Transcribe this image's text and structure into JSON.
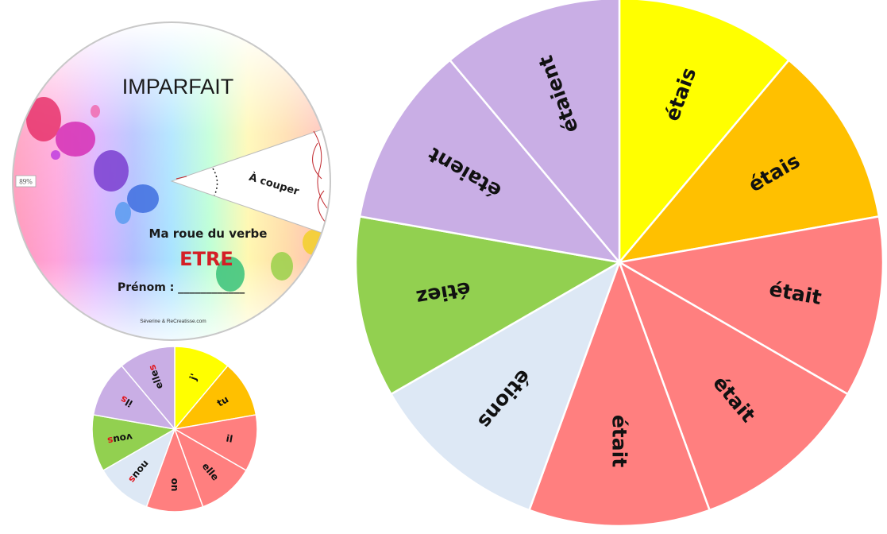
{
  "cover": {
    "title": "IMPARFAIT",
    "subtitle": "Ma roue du verbe",
    "verb": "ETRE",
    "name_label": "Prénom : ____________",
    "credit": "Séverine & ReCreatisse.com",
    "cut_label": "À couper",
    "zoom_badge": "89%"
  },
  "pronoun_wheel": {
    "segments": [
      {
        "stem": "j'",
        "ending": "",
        "color": "#ffff00"
      },
      {
        "stem": "tu",
        "ending": "",
        "color": "#ffc000"
      },
      {
        "stem": "il",
        "ending": "",
        "color": "#ff7f7f"
      },
      {
        "stem": "elle",
        "ending": "",
        "color": "#ff7f7f"
      },
      {
        "stem": "on",
        "ending": "",
        "color": "#ff7f7f"
      },
      {
        "stem": "nou",
        "ending": "s",
        "color": "#dde8f5"
      },
      {
        "stem": "vou",
        "ending": "s",
        "color": "#92d050"
      },
      {
        "stem": "il",
        "ending": "s",
        "color": "#c9aee5"
      },
      {
        "stem": "elle",
        "ending": "s",
        "color": "#c9aee5"
      }
    ]
  },
  "verb_wheel": {
    "segments": [
      {
        "label": "étais",
        "color": "#ffff00"
      },
      {
        "label": "étais",
        "color": "#ffc000"
      },
      {
        "label": "était",
        "color": "#ff7f7f"
      },
      {
        "label": "était",
        "color": "#ff7f7f"
      },
      {
        "label": "était",
        "color": "#ff7f7f"
      },
      {
        "label": "étions",
        "color": "#dde8f5"
      },
      {
        "label": "étiez",
        "color": "#92d050"
      },
      {
        "label": "étaient",
        "color": "#c9aee5"
      },
      {
        "label": "étaient",
        "color": "#c9aee5"
      }
    ]
  }
}
